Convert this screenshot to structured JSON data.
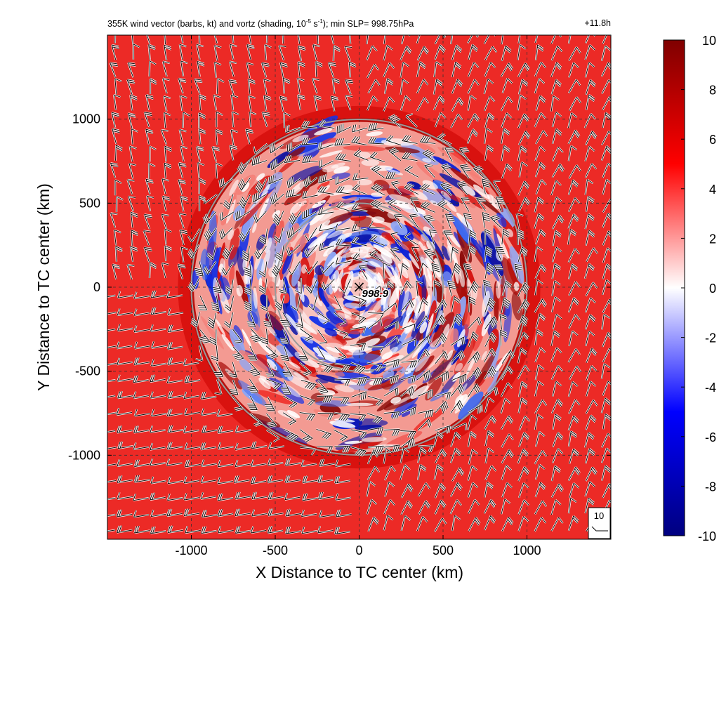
{
  "title": {
    "prefix": "355K wind vector (barbs, kt) and vortz (shading, 10",
    "sup1": "-5",
    "mid": " s",
    "sup2": "-1",
    "suffix": "); min SLP= 998.75hPa",
    "time": "+11.8h"
  },
  "chart_data": {
    "type": "heatmap",
    "xlabel": "X Distance to TC center (km)",
    "ylabel": "Y Distance to TC center (km)",
    "xlim": [
      -1500,
      1500
    ],
    "ylim": [
      -1500,
      1500
    ],
    "x_ticks": [
      -1000,
      -500,
      0,
      500,
      1000
    ],
    "y_ticks": [
      -1000,
      -500,
      0,
      500,
      1000
    ],
    "grid": true,
    "center_marker": {
      "x": 0,
      "y": 0,
      "label": "998.9"
    },
    "range_rings_km": [
      500,
      1000
    ],
    "colorbar": {
      "min": -10,
      "max": 10,
      "ticks": [
        10,
        8,
        6,
        4,
        2,
        0,
        -2,
        -4,
        -6,
        -8,
        -10
      ],
      "colors": [
        "#00007f",
        "#0000ff",
        "#ffffff",
        "#ff0000",
        "#7f0000"
      ]
    },
    "reference_barb_kt": "10"
  }
}
